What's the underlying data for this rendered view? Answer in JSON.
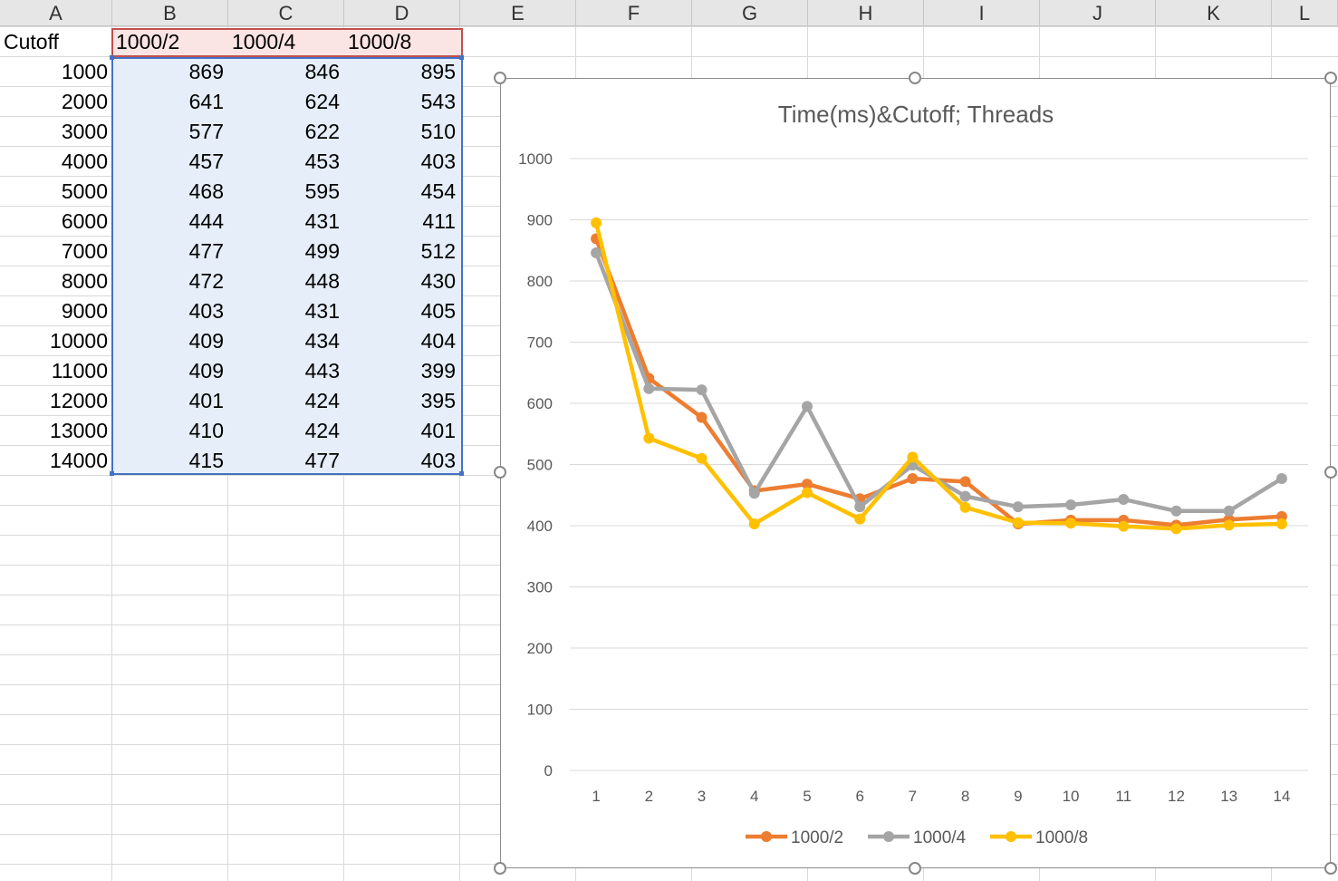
{
  "sheet": {
    "columns": [
      "A",
      "B",
      "C",
      "D",
      "E",
      "F",
      "G",
      "H",
      "I",
      "J",
      "K",
      "L"
    ],
    "header_row": [
      "Cutoff",
      "1000/2",
      "1000/4",
      "1000/8"
    ],
    "rows": [
      [
        "1000",
        "869",
        "846",
        "895"
      ],
      [
        "2000",
        "641",
        "624",
        "543"
      ],
      [
        "3000",
        "577",
        "622",
        "510"
      ],
      [
        "4000",
        "457",
        "453",
        "403"
      ],
      [
        "5000",
        "468",
        "595",
        "454"
      ],
      [
        "6000",
        "444",
        "431",
        "411"
      ],
      [
        "7000",
        "477",
        "499",
        "512"
      ],
      [
        "8000",
        "472",
        "448",
        "430"
      ],
      [
        "9000",
        "403",
        "431",
        "405"
      ],
      [
        "10000",
        "409",
        "434",
        "404"
      ],
      [
        "11000",
        "409",
        "443",
        "399"
      ],
      [
        "12000",
        "401",
        "424",
        "395"
      ],
      [
        "13000",
        "410",
        "424",
        "401"
      ],
      [
        "14000",
        "415",
        "477",
        "403"
      ]
    ]
  },
  "chart_data": {
    "type": "line",
    "title": "Time(ms)&Cutoff; Threads",
    "categories": [
      "1",
      "2",
      "3",
      "4",
      "5",
      "6",
      "7",
      "8",
      "9",
      "10",
      "11",
      "12",
      "13",
      "14"
    ],
    "series": [
      {
        "name": "1000/2",
        "color": "#ed7d31",
        "values": [
          869,
          641,
          577,
          457,
          468,
          444,
          477,
          472,
          403,
          409,
          409,
          401,
          410,
          415
        ]
      },
      {
        "name": "1000/4",
        "color": "#a5a5a5",
        "values": [
          846,
          624,
          622,
          453,
          595,
          431,
          499,
          448,
          431,
          434,
          443,
          424,
          424,
          477
        ]
      },
      {
        "name": "1000/8",
        "color": "#ffc000",
        "values": [
          895,
          543,
          510,
          403,
          454,
          411,
          512,
          430,
          405,
          404,
          399,
          395,
          401,
          403
        ]
      }
    ],
    "yticks": [
      "0",
      "100",
      "200",
      "300",
      "400",
      "500",
      "600",
      "700",
      "800",
      "900",
      "1000"
    ],
    "ylim": [
      0,
      1000
    ],
    "grid": true,
    "legend_position": "bottom"
  }
}
